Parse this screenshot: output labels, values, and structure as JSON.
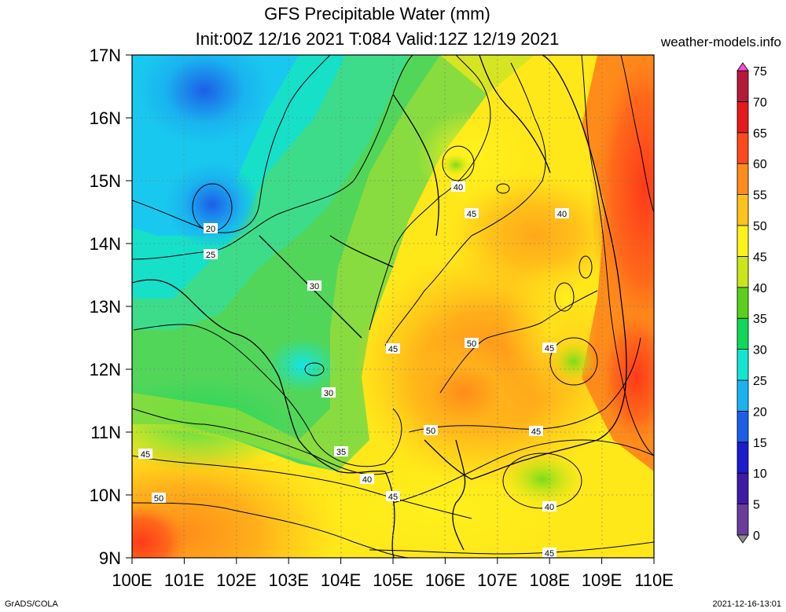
{
  "header": {
    "title_line1": "GFS Precipitable Water (mm)",
    "title_line2": "Init:00Z 12/16 2021 T:084 Valid:12Z 12/19 2021",
    "site": "weather-models.info"
  },
  "axes": {
    "lat_labels": [
      "17N",
      "16N",
      "15N",
      "14N",
      "13N",
      "12N",
      "11N",
      "10N",
      "9N"
    ],
    "lon_labels": [
      "100E",
      "101E",
      "102E",
      "103E",
      "104E",
      "105E",
      "106E",
      "107E",
      "108E",
      "109E",
      "110E"
    ]
  },
  "colorbar": {
    "ticks": [
      "0",
      "5",
      "10",
      "15",
      "20",
      "25",
      "30",
      "35",
      "40",
      "45",
      "50",
      "55",
      "60",
      "65",
      "70",
      "75"
    ],
    "colors": [
      "#8c8c8c",
      "#6a3d9a",
      "#3f1aa6",
      "#1c1ccf",
      "#1d5ee8",
      "#19b4f0",
      "#12e6d2",
      "#10d85a",
      "#5ad01a",
      "#c8e61a",
      "#fff21a",
      "#ffc21a",
      "#ff8c1a",
      "#ff4a1a",
      "#e61a1a",
      "#b41a3a"
    ],
    "top_colors": [
      "#c81a6a",
      "#ff4ad2"
    ]
  },
  "contour_labels": [
    "40",
    "45",
    "40",
    "20",
    "25",
    "30",
    "45",
    "50",
    "45",
    "30",
    "50",
    "45",
    "45",
    "35",
    "40",
    "45",
    "40",
    "50",
    "45"
  ],
  "footer": {
    "left": "GrADS/COLA",
    "right": "2021-12-16-13:01"
  }
}
